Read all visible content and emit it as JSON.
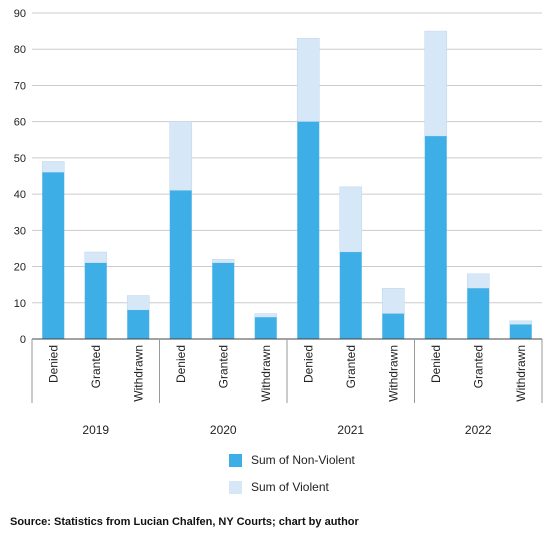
{
  "chart_data": {
    "type": "bar",
    "stacked": true,
    "ylim": [
      0,
      90
    ],
    "yticks": [
      0,
      10,
      20,
      30,
      40,
      50,
      60,
      70,
      80,
      90
    ],
    "grid": true,
    "legend_placement": "bottom",
    "groups": [
      {
        "label": "2019",
        "categories": [
          "Denied",
          "Granted",
          "Withdrawn"
        ]
      },
      {
        "label": "2020",
        "categories": [
          "Denied",
          "Granted",
          "Withdrawn"
        ]
      },
      {
        "label": "2021",
        "categories": [
          "Denied",
          "Granted",
          "Withdrawn"
        ]
      },
      {
        "label": "2022",
        "categories": [
          "Denied",
          "Granted",
          "Withdrawn"
        ]
      }
    ],
    "series": [
      {
        "name": "Sum of Non-Violent",
        "color": "#3daee6",
        "values": [
          46,
          21,
          8,
          41,
          21,
          6,
          60,
          24,
          7,
          56,
          14,
          4
        ]
      },
      {
        "name": "Sum of Violent",
        "color": "#d6e8f8",
        "values": [
          3,
          3,
          4,
          19,
          1,
          1,
          23,
          18,
          7,
          29,
          4,
          1
        ]
      }
    ]
  },
  "source": "Source: Statistics from Lucian Chalfen, NY Courts; chart by author"
}
